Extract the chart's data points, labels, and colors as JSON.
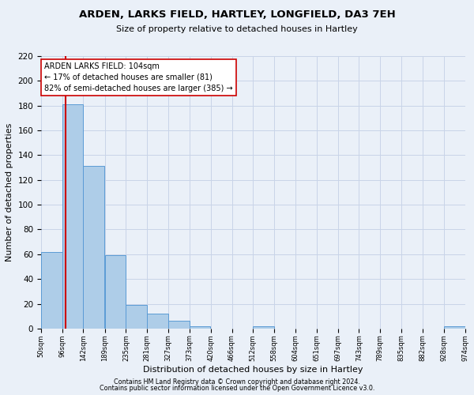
{
  "title": "ARDEN, LARKS FIELD, HARTLEY, LONGFIELD, DA3 7EH",
  "subtitle": "Size of property relative to detached houses in Hartley",
  "xlabel": "Distribution of detached houses by size in Hartley",
  "ylabel": "Number of detached properties",
  "bin_edges": [
    50,
    96,
    142,
    189,
    235,
    281,
    327,
    373,
    420,
    466,
    512,
    558,
    604,
    651,
    697,
    743,
    789,
    835,
    882,
    928,
    974
  ],
  "bar_heights": [
    62,
    181,
    131,
    59,
    19,
    12,
    6,
    2,
    0,
    0,
    2,
    0,
    0,
    0,
    0,
    0,
    0,
    0,
    0,
    2
  ],
  "bar_color": "#aecde8",
  "bar_edge_color": "#5b9bd5",
  "grid_color": "#c8d4e8",
  "background_color": "#eaf0f8",
  "ref_line_x": 104,
  "ref_line_color": "#cc0000",
  "annotation_text": "ARDEN LARKS FIELD: 104sqm\n← 17% of detached houses are smaller (81)\n82% of semi-detached houses are larger (385) →",
  "annotation_box_color": "#ffffff",
  "annotation_box_edge": "#cc0000",
  "ylim": [
    0,
    220
  ],
  "yticks": [
    0,
    20,
    40,
    60,
    80,
    100,
    120,
    140,
    160,
    180,
    200,
    220
  ],
  "tick_labels": [
    "50sqm",
    "96sqm",
    "142sqm",
    "189sqm",
    "235sqm",
    "281sqm",
    "327sqm",
    "373sqm",
    "420sqm",
    "466sqm",
    "512sqm",
    "558sqm",
    "604sqm",
    "651sqm",
    "697sqm",
    "743sqm",
    "789sqm",
    "835sqm",
    "882sqm",
    "928sqm",
    "974sqm"
  ],
  "footer_line1": "Contains HM Land Registry data © Crown copyright and database right 2024.",
  "footer_line2": "Contains public sector information licensed under the Open Government Licence v3.0."
}
